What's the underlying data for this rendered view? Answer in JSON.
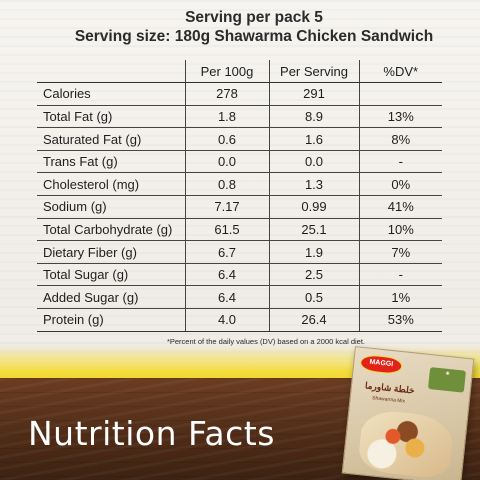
{
  "serving": {
    "per_pack": "Serving per pack 5",
    "size": "Serving size: 180g Shawarma Chicken Sandwich"
  },
  "table": {
    "headers": [
      "Per 100g",
      "Per Serving",
      "%DV*"
    ],
    "rows": [
      {
        "nutrient": "Calories",
        "per100": "278",
        "perServing": "291",
        "dv": ""
      },
      {
        "nutrient": "Total Fat (g)",
        "per100": "1.8",
        "perServing": "8.9",
        "dv": "13%"
      },
      {
        "nutrient": "Saturated Fat (g)",
        "per100": "0.6",
        "perServing": "1.6",
        "dv": "8%"
      },
      {
        "nutrient": "Trans Fat (g)",
        "per100": "0.0",
        "perServing": "0.0",
        "dv": "-"
      },
      {
        "nutrient": "Cholesterol (mg)",
        "per100": "0.8",
        "perServing": "1.3",
        "dv": "0%"
      },
      {
        "nutrient": "Sodium (g)",
        "per100": "7.17",
        "perServing": "0.99",
        "dv": "41%"
      },
      {
        "nutrient": "Total Carbohydrate (g)",
        "per100": "61.5",
        "perServing": "25.1",
        "dv": "10%"
      },
      {
        "nutrient": "Dietary Fiber (g)",
        "per100": "6.7",
        "perServing": "1.9",
        "dv": "7%"
      },
      {
        "nutrient": "Total Sugar (g)",
        "per100": "6.4",
        "perServing": "2.5",
        "dv": "-"
      },
      {
        "nutrient": "Added Sugar (g)",
        "per100": "6.4",
        "perServing": "0.5",
        "dv": "1%"
      },
      {
        "nutrient": "Protein (g)",
        "per100": "4.0",
        "perServing": "26.4",
        "dv": "53%"
      }
    ]
  },
  "footnote": "*Percent of the daily values (DV) based on a 2000 kcal diet.",
  "banner_title": "Nutrition Facts",
  "package": {
    "brand": "MAGGI",
    "arabic_name": "خلطة شاورما",
    "english_name": "Shawarma Mix",
    "icons": [
      "maggi-logo-icon",
      "leaf-badge-icon"
    ]
  },
  "colors": {
    "text": "#1e1e1e",
    "yellow": "#efd21d",
    "wood": "#4e2b16",
    "maggi_red": "#e2231a"
  }
}
